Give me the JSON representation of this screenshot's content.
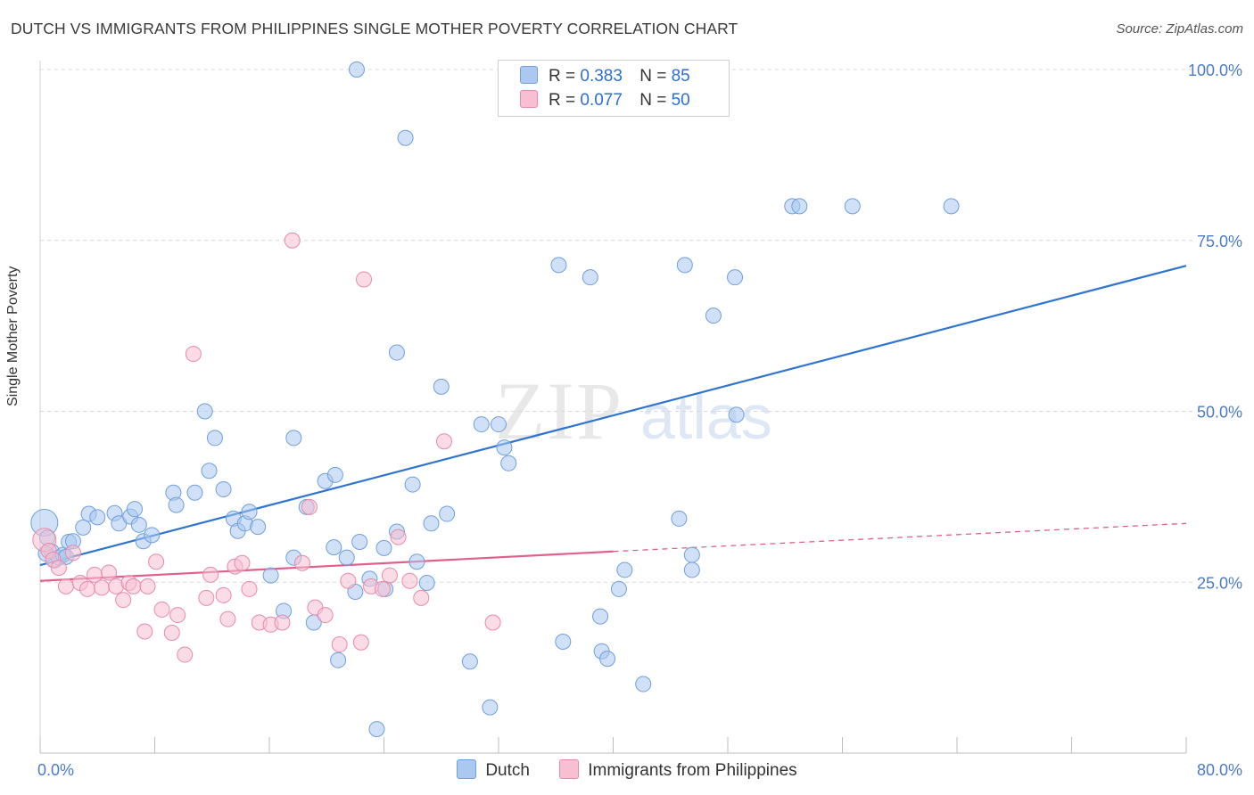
{
  "title": "DUTCH VS IMMIGRANTS FROM PHILIPPINES SINGLE MOTHER POVERTY CORRELATION CHART",
  "source": "Source: ZipAtlas.com",
  "watermark": {
    "zip": "ZIP",
    "atlas": "atlas"
  },
  "legend": {
    "r_label": "R =",
    "n_label": "N =",
    "dutch": {
      "r": "0.383",
      "n": "85"
    },
    "philippines": {
      "r": "0.077",
      "n": "50"
    }
  },
  "colors": {
    "dutch_fill": "#aac8f0",
    "dutch_stroke": "#6f9fdc",
    "dutch_line": "#2e74d0",
    "phil_fill": "#f8bfd2",
    "phil_stroke": "#e88aa8",
    "phil_line": "#e0608c",
    "tick_text": "#4a7bc8",
    "grid": "#d8d8d8"
  },
  "chart_data": {
    "type": "scatter",
    "title": "DUTCH VS IMMIGRANTS FROM PHILIPPINES SINGLE MOTHER POVERTY CORRELATION CHART",
    "xlabel": "",
    "ylabel": "Single Mother Poverty",
    "xlim": [
      0,
      80
    ],
    "ylim": [
      0,
      100
    ],
    "x_tick_labels": [
      "0.0%",
      "80.0%"
    ],
    "y_ticks": [
      25,
      50,
      75,
      100
    ],
    "y_tick_labels": [
      "25.0%",
      "50.0%",
      "75.0%",
      "100.0%"
    ],
    "grid": "horizontal dashed",
    "legend_placement": "top-center",
    "series": [
      {
        "name": "Dutch",
        "r": 0.383,
        "n": 85,
        "trend": {
          "x": [
            0,
            80
          ],
          "y": [
            27.5,
            71.3
          ]
        },
        "points": [
          [
            0.3,
            33.7
          ],
          [
            0.5,
            31.5
          ],
          [
            0.8,
            29.5
          ],
          [
            1.0,
            28.2
          ],
          [
            1.3,
            28.6
          ],
          [
            1.6,
            29.0
          ],
          [
            2.0,
            30.9
          ],
          [
            2.3,
            31.0
          ],
          [
            3.0,
            33.0
          ],
          [
            3.4,
            35.0
          ],
          [
            4.0,
            34.5
          ],
          [
            5.2,
            35.1
          ],
          [
            5.5,
            33.6
          ],
          [
            6.3,
            34.6
          ],
          [
            6.6,
            35.7
          ],
          [
            6.9,
            33.4
          ],
          [
            7.2,
            31.0
          ],
          [
            7.8,
            31.9
          ],
          [
            9.3,
            38.1
          ],
          [
            9.5,
            36.3
          ],
          [
            10.8,
            38.1
          ],
          [
            11.5,
            50.0
          ],
          [
            11.8,
            41.3
          ],
          [
            12.2,
            46.1
          ],
          [
            12.8,
            38.6
          ],
          [
            13.5,
            34.3
          ],
          [
            13.8,
            32.5
          ],
          [
            14.3,
            33.6
          ],
          [
            15.2,
            33.1
          ],
          [
            16.1,
            26.0
          ],
          [
            17.0,
            20.8
          ],
          [
            17.7,
            46.1
          ],
          [
            17.7,
            28.6
          ],
          [
            18.6,
            36.0
          ],
          [
            19.1,
            19.1
          ],
          [
            19.9,
            39.8
          ],
          [
            20.5,
            30.1
          ],
          [
            20.6,
            40.7
          ],
          [
            21.4,
            28.6
          ],
          [
            20.8,
            13.6
          ],
          [
            22.0,
            23.6
          ],
          [
            22.1,
            100.0
          ],
          [
            22.3,
            30.9
          ],
          [
            23.0,
            25.5
          ],
          [
            23.5,
            3.5
          ],
          [
            24.0,
            30.0
          ],
          [
            24.9,
            58.6
          ],
          [
            24.9,
            32.4
          ],
          [
            25.5,
            90.0
          ],
          [
            26.0,
            39.3
          ],
          [
            26.3,
            28.0
          ],
          [
            27.0,
            24.9
          ],
          [
            27.3,
            33.6
          ],
          [
            28.0,
            53.6
          ],
          [
            28.4,
            35.0
          ],
          [
            30.0,
            13.4
          ],
          [
            30.8,
            48.1
          ],
          [
            32.0,
            48.1
          ],
          [
            31.4,
            6.7
          ],
          [
            32.4,
            44.7
          ],
          [
            32.7,
            42.4
          ],
          [
            36.2,
            71.4
          ],
          [
            36.5,
            16.3
          ],
          [
            38.4,
            69.6
          ],
          [
            39.1,
            20.0
          ],
          [
            39.2,
            14.9
          ],
          [
            39.6,
            13.8
          ],
          [
            40.4,
            24.0
          ],
          [
            40.8,
            26.8
          ],
          [
            42.1,
            10.1
          ],
          [
            45.0,
            71.4
          ],
          [
            45.5,
            29.0
          ],
          [
            45.5,
            26.8
          ],
          [
            47.0,
            64.0
          ],
          [
            48.5,
            69.6
          ],
          [
            48.6,
            49.5
          ],
          [
            52.5,
            80.0
          ],
          [
            53.0,
            80.0
          ],
          [
            56.7,
            80.0
          ],
          [
            63.6,
            80.0
          ],
          [
            0.4,
            29.2
          ],
          [
            1.8,
            28.7
          ],
          [
            14.6,
            35.3
          ],
          [
            24.1,
            24.0
          ],
          [
            44.6,
            34.3
          ]
        ]
      },
      {
        "name": "Immigrants from Philippines",
        "r": 0.077,
        "n": 50,
        "trend": {
          "x": [
            0,
            40
          ],
          "y": [
            25.2,
            29.5
          ]
        },
        "trend_dashed_to": {
          "x": 80,
          "y": 33.6
        },
        "points": [
          [
            0.3,
            31.2
          ],
          [
            0.6,
            29.6
          ],
          [
            0.9,
            28.3
          ],
          [
            1.3,
            27.1
          ],
          [
            1.8,
            24.4
          ],
          [
            2.3,
            29.3
          ],
          [
            2.8,
            24.9
          ],
          [
            3.3,
            24.0
          ],
          [
            3.8,
            26.1
          ],
          [
            4.3,
            24.2
          ],
          [
            4.8,
            26.4
          ],
          [
            5.3,
            24.4
          ],
          [
            5.8,
            22.4
          ],
          [
            6.2,
            24.9
          ],
          [
            6.5,
            24.4
          ],
          [
            7.3,
            17.8
          ],
          [
            7.5,
            24.4
          ],
          [
            8.1,
            28.0
          ],
          [
            8.5,
            21.0
          ],
          [
            9.2,
            17.6
          ],
          [
            9.6,
            20.2
          ],
          [
            10.1,
            14.4
          ],
          [
            10.7,
            58.4
          ],
          [
            11.6,
            22.7
          ],
          [
            11.9,
            26.1
          ],
          [
            12.8,
            23.1
          ],
          [
            13.1,
            19.6
          ],
          [
            13.6,
            27.3
          ],
          [
            14.1,
            27.8
          ],
          [
            14.6,
            24.0
          ],
          [
            15.3,
            19.1
          ],
          [
            16.1,
            18.8
          ],
          [
            16.9,
            19.1
          ],
          [
            17.6,
            75.0
          ],
          [
            18.3,
            27.8
          ],
          [
            18.8,
            36.0
          ],
          [
            19.2,
            21.3
          ],
          [
            19.9,
            20.2
          ],
          [
            20.9,
            15.9
          ],
          [
            21.5,
            25.2
          ],
          [
            22.4,
            16.2
          ],
          [
            22.6,
            69.3
          ],
          [
            23.1,
            24.4
          ],
          [
            23.9,
            24.0
          ],
          [
            24.4,
            26.0
          ],
          [
            25.0,
            31.6
          ],
          [
            25.8,
            25.2
          ],
          [
            26.6,
            22.7
          ],
          [
            28.2,
            45.6
          ],
          [
            31.6,
            19.1
          ]
        ]
      }
    ],
    "extra_points_note": ""
  }
}
